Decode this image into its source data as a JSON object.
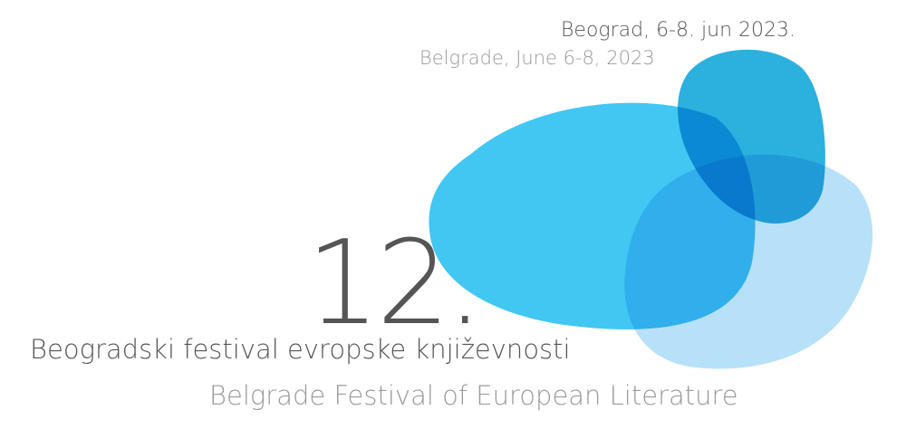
{
  "header": {
    "date_local": "Beograd, 6-8. jun 2023.",
    "date_english": "Belgrade, June 6-8, 2023"
  },
  "edition": "12.",
  "title_local": "Beogradski festival evropske književnosti",
  "title_english": "Belgrade Festival of European Literature"
}
